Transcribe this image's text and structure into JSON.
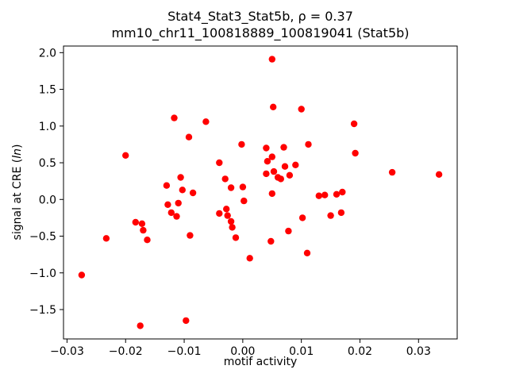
{
  "figure": {
    "background": "#ffffff",
    "title_line1": "Stat4_Stat3_Stat5b, ρ = 0.37",
    "title_line2": "mm10_chr11_100818889_100819041 (Stat5b)",
    "xlabel": "motif activity",
    "ylabel_prefix": "signal at CRE (",
    "ylabel_italic": "ln",
    "ylabel_suffix": ")"
  },
  "chart_data": {
    "type": "scatter",
    "title": "Stat4_Stat3_Stat5b, ρ = 0.37\nmm10_chr11_100818889_100819041 (Stat5b)",
    "xlabel": "motif activity",
    "ylabel": "signal at CRE (ln)",
    "xlim": [
      -0.0306,
      0.0366
    ],
    "ylim": [
      -1.9,
      2.09
    ],
    "xticks": [
      -0.03,
      -0.02,
      -0.01,
      0.0,
      0.01,
      0.02,
      0.03
    ],
    "xtick_labels": [
      "−0.03",
      "−0.02",
      "−0.01",
      "0.00",
      "0.01",
      "0.02",
      "0.03"
    ],
    "yticks": [
      -1.5,
      -1.0,
      -0.5,
      0.0,
      0.5,
      1.0,
      1.5,
      2.0
    ],
    "ytick_labels": [
      "−1.5",
      "−1.0",
      "−0.5",
      "0.0",
      "0.5",
      "1.0",
      "1.5",
      "2.0"
    ],
    "grid": false,
    "legend": null,
    "marker": {
      "color": "#ff0000",
      "radius_px": 4.2
    },
    "points": [
      [
        -0.0275,
        -1.03
      ],
      [
        -0.0233,
        -0.53
      ],
      [
        -0.02,
        0.6
      ],
      [
        -0.0183,
        -0.31
      ],
      [
        -0.0175,
        -1.72
      ],
      [
        -0.0172,
        -0.33
      ],
      [
        -0.017,
        -0.42
      ],
      [
        -0.0163,
        -0.55
      ],
      [
        -0.013,
        0.19
      ],
      [
        -0.0128,
        -0.07
      ],
      [
        -0.0122,
        -0.18
      ],
      [
        -0.0117,
        1.11
      ],
      [
        -0.0113,
        -0.23
      ],
      [
        -0.011,
        -0.05
      ],
      [
        -0.0106,
        0.3
      ],
      [
        -0.0103,
        0.13
      ],
      [
        -0.0097,
        -1.65
      ],
      [
        -0.0092,
        0.85
      ],
      [
        -0.009,
        -0.49
      ],
      [
        -0.0085,
        0.09
      ],
      [
        -0.0063,
        1.06
      ],
      [
        -0.004,
        0.5
      ],
      [
        -0.004,
        -0.19
      ],
      [
        -0.003,
        0.28
      ],
      [
        -0.0028,
        -0.13
      ],
      [
        -0.0026,
        -0.22
      ],
      [
        -0.002,
        0.16
      ],
      [
        -0.002,
        -0.3
      ],
      [
        -0.0018,
        -0.38
      ],
      [
        -0.0012,
        -0.52
      ],
      [
        -0.0002,
        0.75
      ],
      [
        0.0,
        0.17
      ],
      [
        0.0002,
        -0.02
      ],
      [
        0.0012,
        -0.8
      ],
      [
        0.004,
        0.7
      ],
      [
        0.0042,
        0.52
      ],
      [
        0.004,
        0.35
      ],
      [
        0.005,
        1.91
      ],
      [
        0.0052,
        1.26
      ],
      [
        0.005,
        0.58
      ],
      [
        0.0053,
        0.38
      ],
      [
        0.005,
        0.08
      ],
      [
        0.0048,
        -0.57
      ],
      [
        0.006,
        0.3
      ],
      [
        0.0065,
        0.28
      ],
      [
        0.007,
        0.71
      ],
      [
        0.0072,
        0.45
      ],
      [
        0.008,
        0.33
      ],
      [
        0.0078,
        -0.43
      ],
      [
        0.009,
        0.47
      ],
      [
        0.01,
        1.23
      ],
      [
        0.0102,
        -0.25
      ],
      [
        0.0112,
        0.75
      ],
      [
        0.011,
        -0.73
      ],
      [
        0.013,
        0.05
      ],
      [
        0.014,
        0.06
      ],
      [
        0.015,
        -0.22
      ],
      [
        0.016,
        0.07
      ],
      [
        0.017,
        0.1
      ],
      [
        0.0168,
        -0.18
      ],
      [
        0.019,
        1.03
      ],
      [
        0.0192,
        0.63
      ],
      [
        0.0255,
        0.37
      ],
      [
        0.0335,
        0.34
      ]
    ]
  }
}
